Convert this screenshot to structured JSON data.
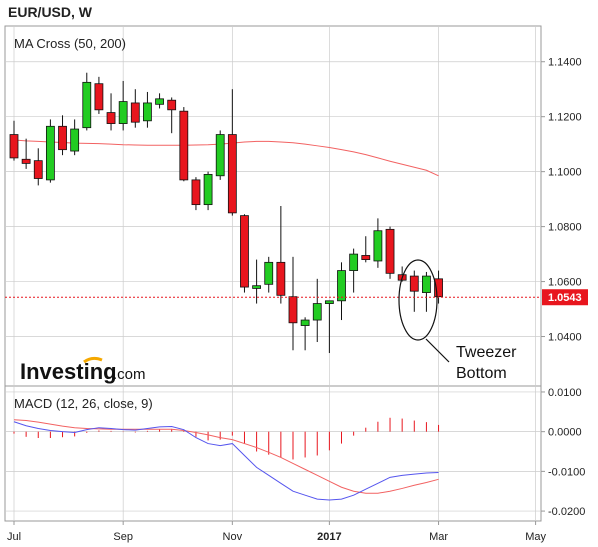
{
  "header": {
    "title": "EUR/USD, W"
  },
  "price_panel": {
    "label": "MA Cross (50, 200)"
  },
  "macd_panel": {
    "label": "MACD (12, 26, close, 9)"
  },
  "logo": {
    "main": "Investing",
    "suffix": ".com"
  },
  "annotation": {
    "line1": "Tweezer",
    "line2": "Bottom"
  },
  "colors": {
    "up": "#22cc22",
    "down": "#e8161e",
    "ma": "#f26262",
    "macd": "#5555ee",
    "signal": "#f26262",
    "hist": "#e8161e",
    "grid": "#cccccc"
  },
  "chart_data": [
    {
      "type": "candlestick",
      "title": "MA Cross (50, 200)",
      "ylim": [
        1.022,
        1.153
      ],
      "yticks": [
        "1.0400",
        "1.0600",
        "1.0800",
        "1.1000",
        "1.1200",
        "1.1400"
      ],
      "xticks": [
        {
          "label": "Jul",
          "index": 0
        },
        {
          "label": "Sep",
          "index": 9
        },
        {
          "label": "Nov",
          "index": 18
        },
        {
          "label": "2017",
          "index": 26
        },
        {
          "label": "Mar",
          "index": 35
        },
        {
          "label": "May",
          "index": 43
        }
      ],
      "current_price": {
        "value": 1.0543,
        "label": "1.0543"
      },
      "candles": [
        {
          "o": 1.1135,
          "h": 1.1185,
          "l": 1.104,
          "c": 1.105
        },
        {
          "o": 1.1045,
          "h": 1.112,
          "l": 1.101,
          "c": 1.103
        },
        {
          "o": 1.104,
          "h": 1.1085,
          "l": 1.095,
          "c": 1.0975
        },
        {
          "o": 1.097,
          "h": 1.119,
          "l": 1.096,
          "c": 1.1165
        },
        {
          "o": 1.1165,
          "h": 1.1205,
          "l": 1.106,
          "c": 1.108
        },
        {
          "o": 1.1075,
          "h": 1.119,
          "l": 1.106,
          "c": 1.1155
        },
        {
          "o": 1.116,
          "h": 1.136,
          "l": 1.115,
          "c": 1.1325
        },
        {
          "o": 1.132,
          "h": 1.1345,
          "l": 1.121,
          "c": 1.1225
        },
        {
          "o": 1.1215,
          "h": 1.1285,
          "l": 1.115,
          "c": 1.1175
        },
        {
          "o": 1.1175,
          "h": 1.133,
          "l": 1.115,
          "c": 1.1255
        },
        {
          "o": 1.125,
          "h": 1.13,
          "l": 1.116,
          "c": 1.118
        },
        {
          "o": 1.1185,
          "h": 1.129,
          "l": 1.116,
          "c": 1.125
        },
        {
          "o": 1.1245,
          "h": 1.1285,
          "l": 1.123,
          "c": 1.1265
        },
        {
          "o": 1.126,
          "h": 1.127,
          "l": 1.114,
          "c": 1.1225
        },
        {
          "o": 1.122,
          "h": 1.1235,
          "l": 1.0965,
          "c": 1.097
        },
        {
          "o": 1.097,
          "h": 1.098,
          "l": 1.086,
          "c": 1.088
        },
        {
          "o": 1.088,
          "h": 1.1,
          "l": 1.086,
          "c": 1.099
        },
        {
          "o": 1.0985,
          "h": 1.115,
          "l": 1.097,
          "c": 1.1135
        },
        {
          "o": 1.1135,
          "h": 1.13,
          "l": 1.084,
          "c": 1.085
        },
        {
          "o": 1.084,
          "h": 1.0845,
          "l": 1.056,
          "c": 1.058
        },
        {
          "o": 1.0575,
          "h": 1.068,
          "l": 1.052,
          "c": 1.0585
        },
        {
          "o": 1.059,
          "h": 1.069,
          "l": 1.056,
          "c": 1.067
        },
        {
          "o": 1.067,
          "h": 1.0875,
          "l": 1.052,
          "c": 1.055
        },
        {
          "o": 1.0545,
          "h": 1.069,
          "l": 1.035,
          "c": 1.045
        },
        {
          "o": 1.044,
          "h": 1.047,
          "l": 1.035,
          "c": 1.046
        },
        {
          "o": 1.046,
          "h": 1.061,
          "l": 1.038,
          "c": 1.052
        },
        {
          "o": 1.052,
          "h": 1.053,
          "l": 1.034,
          "c": 1.053
        },
        {
          "o": 1.053,
          "h": 1.067,
          "l": 1.046,
          "c": 1.064
        },
        {
          "o": 1.064,
          "h": 1.072,
          "l": 1.056,
          "c": 1.07
        },
        {
          "o": 1.0695,
          "h": 1.0765,
          "l": 1.067,
          "c": 1.068
        },
        {
          "o": 1.0675,
          "h": 1.083,
          "l": 1.065,
          "c": 1.0785
        },
        {
          "o": 1.079,
          "h": 1.08,
          "l": 1.061,
          "c": 1.063
        },
        {
          "o": 1.0625,
          "h": 1.0655,
          "l": 1.06,
          "c": 1.0605
        },
        {
          "o": 1.062,
          "h": 1.064,
          "l": 1.049,
          "c": 1.0565
        },
        {
          "o": 1.056,
          "h": 1.0635,
          "l": 1.049,
          "c": 1.062
        },
        {
          "o": 1.061,
          "h": 1.064,
          "l": 1.052,
          "c": 1.0545
        }
      ],
      "ma": [
        1.1115,
        1.1112,
        1.111,
        1.1108,
        1.1106,
        1.1104,
        1.1103,
        1.1102,
        1.11,
        1.1098,
        1.1097,
        1.1096,
        1.1096,
        1.1096,
        1.1096,
        1.1097,
        1.1098,
        1.11,
        1.1104,
        1.1108,
        1.111,
        1.111,
        1.1108,
        1.1105,
        1.11,
        1.1094,
        1.1088,
        1.108,
        1.1072,
        1.1062,
        1.105,
        1.1038,
        1.1027,
        1.1016,
        1.1005,
        1.0985
      ]
    },
    {
      "type": "macd",
      "title": "MACD (12, 26, close, 9)",
      "ylim": [
        -0.0225,
        0.0115
      ],
      "yticks": [
        "0.0100",
        "0.0000",
        "-0.0100",
        "-0.0200"
      ],
      "macd": [
        0.0025,
        0.0015,
        0.0008,
        0.0003,
        0.0,
        -0.0002,
        0.0005,
        0.001,
        0.0008,
        0.0005,
        0.0004,
        0.0008,
        0.0012,
        0.0013,
        0.0005,
        -0.0015,
        -0.003,
        -0.0035,
        -0.003,
        -0.006,
        -0.009,
        -0.011,
        -0.013,
        -0.015,
        -0.016,
        -0.017,
        -0.0172,
        -0.017,
        -0.016,
        -0.0145,
        -0.013,
        -0.0115,
        -0.011,
        -0.0107,
        -0.0104,
        -0.0103
      ],
      "signal": [
        0.003,
        0.0028,
        0.0024,
        0.0019,
        0.0014,
        0.001,
        0.0008,
        0.0007,
        0.0006,
        0.0006,
        0.0006,
        0.0006,
        0.0006,
        0.0006,
        0.0003,
        -0.0002,
        -0.0008,
        -0.0015,
        -0.002,
        -0.003,
        -0.004,
        -0.0052,
        -0.0065,
        -0.008,
        -0.0095,
        -0.011,
        -0.0125,
        -0.014,
        -0.015,
        -0.0155,
        -0.0155,
        -0.015,
        -0.0143,
        -0.0135,
        -0.0128,
        -0.012
      ],
      "hist": [
        -0.0005,
        -0.0013,
        -0.0016,
        -0.0016,
        -0.0014,
        -0.0012,
        -0.0003,
        0.0003,
        0.0002,
        -0.0001,
        -0.0002,
        0.0002,
        0.0006,
        0.0007,
        0.0002,
        -0.0013,
        -0.0022,
        -0.002,
        -0.001,
        -0.003,
        -0.005,
        -0.0058,
        -0.0065,
        -0.007,
        -0.0065,
        -0.006,
        -0.0047,
        -0.003,
        -0.001,
        0.001,
        0.0025,
        0.0035,
        0.0033,
        0.0028,
        0.0024,
        0.0017
      ]
    }
  ]
}
